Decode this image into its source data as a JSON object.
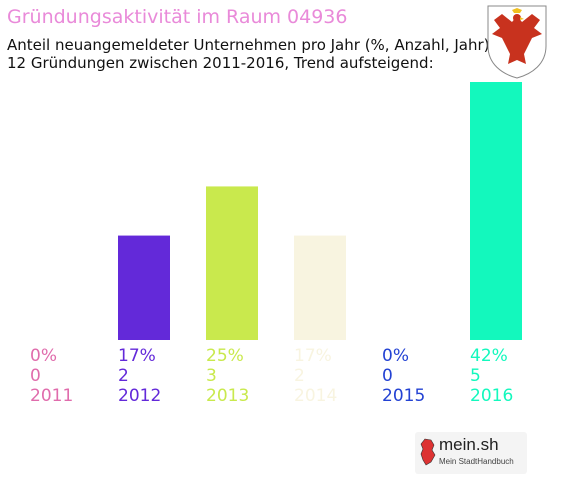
{
  "header": {
    "title": "Gründungsaktivität im Raum 04936",
    "subtitle_line1": "Anteil neuangemeldeter Unternehmen pro Jahr (%, Anzahl, Jahr)",
    "subtitle_line2": "12 Gründungen zwischen 2011-2016, Trend aufsteigend:"
  },
  "crest": {
    "icon": "eagle-coat-of-arms-icon",
    "colors": {
      "eagle": "#c8321e",
      "beak": "#f0c020"
    }
  },
  "logo": {
    "name": "mein.sh",
    "tagline": "Mein StadtHandbuch",
    "accent": "#cc2222"
  },
  "chart_data": {
    "type": "bar",
    "title": "Gründungsaktivität im Raum 04936",
    "categories": [
      "2011",
      "2012",
      "2013",
      "2014",
      "2015",
      "2016"
    ],
    "values": [
      0,
      17,
      25,
      17,
      0,
      42
    ],
    "counts": [
      0,
      2,
      3,
      2,
      0,
      5
    ],
    "percent_labels": [
      "0%",
      "17%",
      "25%",
      "17%",
      "0%",
      "42%"
    ],
    "count_labels": [
      "0",
      "2",
      "3",
      "2",
      "0",
      "5"
    ],
    "colors": [
      "#e06cac",
      "#6329d9",
      "#c9e94d",
      "#f8f4e0",
      "#2342d3",
      "#13f8bd"
    ],
    "ylim": [
      0,
      42
    ],
    "grid": false,
    "legend": "none"
  }
}
